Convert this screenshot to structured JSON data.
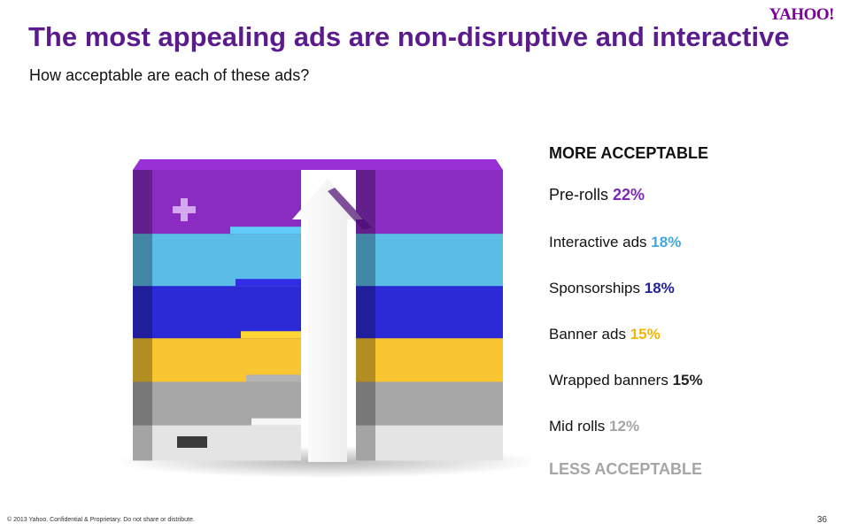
{
  "logo": "YAHOO!",
  "title": "The most appealing ads are non-disruptive and interactive",
  "subtitle": "How acceptable are each of these ads?",
  "footer": "© 2013 Yahoo. Confidential & Proprietary. Do not share or distribute.",
  "page_number": "36",
  "chart_data": {
    "type": "bar",
    "title": "The most appealing ads are non-disruptive and interactive",
    "subtitle": "How acceptable are each of these ads?",
    "top_label": "MORE ACCEPTABLE",
    "bottom_label": "LESS ACCEPTABLE",
    "categories": [
      "Pre-rolls",
      "Interactive ads",
      "Sponsorships",
      "Banner ads",
      "Wrapped banners",
      "Mid rolls"
    ],
    "values": [
      22,
      18,
      18,
      15,
      15,
      12
    ],
    "value_labels": [
      "22%",
      "18%",
      "18%",
      "15%",
      "15%",
      "12%"
    ],
    "colors": [
      "#8a2cc2",
      "#5bbde6",
      "#2c2ad6",
      "#f9c631",
      "#a6a6a6",
      "#e4e4e4"
    ],
    "unit": "%"
  }
}
